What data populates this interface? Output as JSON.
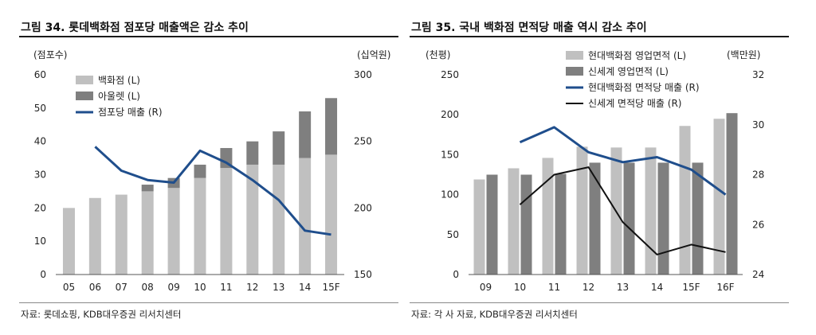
{
  "figures": [
    {
      "title": "그림 34. 롯데백화점 점포당 매출액은 감소 추이",
      "source": "자료: 롯데쇼핑, KDB대우증권 리서치센터"
    },
    {
      "title": "그림 35. 국내 백화점 면적당 매출 역시 감소 추이",
      "source": "자료: 각 사 자료, KDB대우증권 리서치센터"
    }
  ],
  "chart_data": [
    {
      "type": "bar",
      "stacked": true,
      "title": "그림 34. 롯데백화점 점포당 매출액은 감소 추이",
      "categories": [
        "05",
        "06",
        "07",
        "08",
        "09",
        "10",
        "11",
        "12",
        "13",
        "14",
        "15F"
      ],
      "y_left": {
        "unit_label": "(점포수)",
        "ylim": [
          0,
          60
        ],
        "ticks": [
          0,
          10,
          20,
          30,
          40,
          50,
          60
        ]
      },
      "y_right": {
        "unit_label": "(십억원)",
        "ylim": [
          150,
          300
        ],
        "ticks": [
          150,
          200,
          250,
          300
        ]
      },
      "bar_series": [
        {
          "name": "백화점 (L)",
          "color": "#c0c0c0",
          "values": [
            20,
            23,
            24,
            25,
            26,
            29,
            32,
            33,
            33,
            35,
            36
          ]
        },
        {
          "name": "아울렛 (L)",
          "color": "#7f7f7f",
          "values": [
            0,
            0,
            0,
            2,
            3,
            4,
            6,
            7,
            10,
            14,
            17
          ]
        }
      ],
      "line_series": [
        {
          "name": "점포당 매출 (R)",
          "color": "#1f4e8c",
          "axis": "right",
          "values": [
            null,
            246,
            228,
            221,
            219,
            243,
            234,
            221,
            206,
            183,
            180
          ]
        }
      ],
      "legend_position": "top-left",
      "grid": false
    },
    {
      "type": "bar",
      "stacked": false,
      "title": "그림 35. 국내 백화점 면적당 매출 역시 감소 추이",
      "categories": [
        "09",
        "10",
        "11",
        "12",
        "13",
        "14",
        "15F",
        "16F"
      ],
      "y_left": {
        "unit_label": "(천평)",
        "ylim": [
          0,
          250
        ],
        "ticks": [
          0,
          50,
          100,
          150,
          200,
          250
        ]
      },
      "y_right": {
        "unit_label": "(백만원)",
        "ylim": [
          24,
          32
        ],
        "ticks": [
          24,
          26,
          28,
          30,
          32
        ]
      },
      "bar_series": [
        {
          "name": "현대백화점 영업면적 (L)",
          "color": "#c0c0c0",
          "values": [
            119,
            133,
            146,
            160,
            159,
            159,
            186,
            195
          ]
        },
        {
          "name": "신세계 영업면적 (L)",
          "color": "#7f7f7f",
          "values": [
            125,
            125,
            126,
            140,
            140,
            140,
            140,
            202
          ]
        }
      ],
      "line_series": [
        {
          "name": "현대백화점 면적당 매출 (R)",
          "color": "#1f4e8c",
          "axis": "right",
          "values": [
            null,
            29.3,
            29.9,
            28.9,
            28.5,
            28.7,
            28.2,
            27.2
          ]
        },
        {
          "name": "신세계 면적당 매출 (R)",
          "color": "#111111",
          "axis": "right",
          "values": [
            null,
            26.8,
            28.0,
            28.3,
            26.1,
            24.8,
            25.2,
            24.9
          ]
        }
      ],
      "legend_position": "top-right",
      "grid": false
    }
  ]
}
